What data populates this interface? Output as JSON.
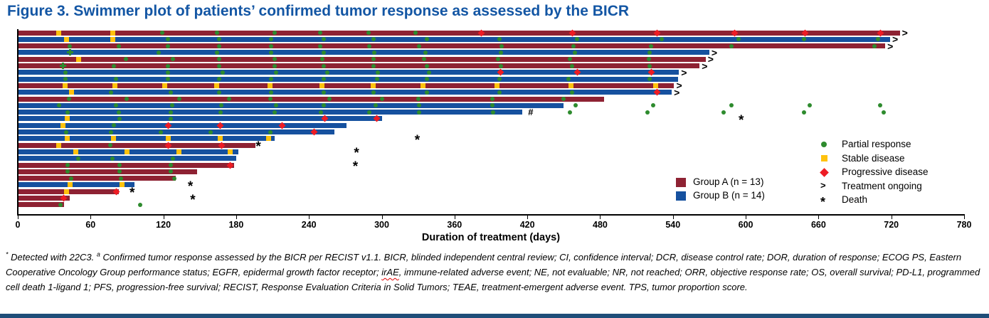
{
  "title": {
    "text": "Figure 3. Swimmer plot of patients’ confirmed tumor response as assessed by the BICR"
  },
  "chart_data": {
    "type": "swimmer",
    "title": "Swimmer plot of patients' confirmed tumor response as assessed by the BICR",
    "xlabel": "Duration of treatment (days)",
    "xlim": [
      0,
      780
    ],
    "x_ticks": [
      0,
      60,
      120,
      180,
      240,
      300,
      360,
      420,
      480,
      540,
      600,
      660,
      720,
      780
    ],
    "grid": false,
    "legend_position": "inside-right",
    "groups": [
      {
        "id": "A",
        "label": "Group A (n = 13)",
        "color": "#8E2233"
      },
      {
        "id": "B",
        "label": "Group B (n = 14)",
        "color": "#16519F"
      }
    ],
    "marker_legend": [
      {
        "type": "pr",
        "label": "Partial response",
        "color": "#2E8B2E"
      },
      {
        "type": "sd",
        "label": "Stable disease",
        "color": "#FFC20E"
      },
      {
        "type": "pd",
        "label": "Progressive disease",
        "color": "#ED1C24"
      },
      {
        "type": "ongoing",
        "label": "Treatment ongoing",
        "symbol": ">"
      },
      {
        "type": "death",
        "label": "Death",
        "symbol": "*"
      }
    ],
    "patients": [
      {
        "group": "A",
        "end": 727,
        "ongoing": true,
        "markers": [
          [
            "sd",
            34
          ],
          [
            "sd",
            78
          ],
          [
            "pr",
            119
          ],
          [
            "pr",
            164
          ],
          [
            "pr",
            212
          ],
          [
            "pr",
            249
          ],
          [
            "pr",
            289
          ],
          [
            "pr",
            328
          ],
          [
            "pd",
            382
          ],
          [
            "pd",
            457
          ],
          [
            "pd",
            527
          ],
          [
            "pd",
            591
          ],
          [
            "pd",
            649
          ],
          [
            "pd",
            711
          ]
        ]
      },
      {
        "group": "B",
        "end": 719,
        "ongoing": true,
        "markers": [
          [
            "sd",
            40
          ],
          [
            "sd",
            78
          ],
          [
            "pr",
            124
          ],
          [
            "pr",
            166
          ],
          [
            "pr",
            209
          ],
          [
            "pr",
            252
          ],
          [
            "pr",
            293
          ],
          [
            "pr",
            337
          ],
          [
            "pr",
            397
          ],
          [
            "pr",
            461
          ],
          [
            "pr",
            531
          ],
          [
            "pr",
            594
          ],
          [
            "pr",
            648
          ],
          [
            "pr",
            709
          ]
        ]
      },
      {
        "group": "A",
        "end": 715,
        "ongoing": true,
        "markers": [
          [
            "pr",
            43
          ],
          [
            "pr",
            83
          ],
          [
            "pr",
            124
          ],
          [
            "pr",
            166
          ],
          [
            "pr",
            209
          ],
          [
            "pr",
            249
          ],
          [
            "pr",
            290
          ],
          [
            "pr",
            331
          ],
          [
            "pr",
            399
          ],
          [
            "pr",
            458
          ],
          [
            "pr",
            522
          ],
          [
            "pr",
            588
          ],
          [
            "pr",
            706
          ]
        ]
      },
      {
        "group": "B",
        "end": 570,
        "ongoing": true,
        "markers": [
          [
            "plus",
            43
          ],
          [
            "pr",
            116
          ],
          [
            "pr",
            164
          ],
          [
            "pr",
            209
          ],
          [
            "pr",
            252
          ],
          [
            "pr",
            294
          ],
          [
            "pr",
            336
          ],
          [
            "pr",
            398
          ],
          [
            "pr",
            459
          ],
          [
            "pr",
            521
          ]
        ]
      },
      {
        "group": "A",
        "end": 567,
        "ongoing": true,
        "markers": [
          [
            "sd",
            50
          ],
          [
            "pr",
            89
          ],
          [
            "pr",
            128
          ],
          [
            "pr",
            166
          ],
          [
            "pr",
            212
          ],
          [
            "pr",
            251
          ],
          [
            "pr",
            293
          ],
          [
            "pr",
            335
          ],
          [
            "pr",
            396
          ],
          [
            "pr",
            455
          ],
          [
            "pr",
            520
          ]
        ]
      },
      {
        "group": "A",
        "end": 562,
        "ongoing": true,
        "markers": [
          [
            "plus",
            37
          ],
          [
            "pr",
            79
          ],
          [
            "pr",
            124
          ],
          [
            "pr",
            166
          ],
          [
            "pr",
            212
          ],
          [
            "pr",
            252
          ],
          [
            "pr",
            293
          ],
          [
            "pr",
            337
          ],
          [
            "pr",
            398
          ],
          [
            "pr",
            457
          ],
          [
            "pr",
            521
          ]
        ]
      },
      {
        "group": "B",
        "end": 545,
        "ongoing": true,
        "markers": [
          [
            "pr",
            39
          ],
          [
            "pr",
            124
          ],
          [
            "pr",
            169
          ],
          [
            "pr",
            213
          ],
          [
            "pr",
            255
          ],
          [
            "pr",
            297
          ],
          [
            "pr",
            339
          ],
          [
            "pd",
            398
          ],
          [
            "pd",
            461
          ],
          [
            "pd",
            522
          ]
        ]
      },
      {
        "group": "B",
        "end": 544,
        "ongoing": false,
        "markers": [
          [
            "pr",
            39
          ],
          [
            "pr",
            81
          ],
          [
            "pr",
            124
          ],
          [
            "pr",
            166
          ],
          [
            "pr",
            209
          ],
          [
            "pr",
            252
          ],
          [
            "pr",
            296
          ],
          [
            "pr",
            337
          ],
          [
            "pr",
            397
          ],
          [
            "pr",
            454
          ],
          [
            "pr",
            521
          ]
        ]
      },
      {
        "group": "A",
        "end": 541,
        "ongoing": true,
        "markers": [
          [
            "sd",
            39
          ],
          [
            "sd",
            80
          ],
          [
            "sd",
            121
          ],
          [
            "sd",
            164
          ],
          [
            "sd",
            208
          ],
          [
            "sd",
            251
          ],
          [
            "sd",
            293
          ],
          [
            "sd",
            334
          ],
          [
            "sd",
            395
          ],
          [
            "sd",
            456
          ],
          [
            "sd",
            526
          ]
        ]
      },
      {
        "group": "B",
        "end": 539,
        "ongoing": true,
        "markers": [
          [
            "sd",
            44
          ],
          [
            "pr",
            77
          ],
          [
            "pr",
            126
          ],
          [
            "pr",
            166
          ],
          [
            "pr",
            209
          ],
          [
            "pr",
            252
          ],
          [
            "pr",
            293
          ],
          [
            "pr",
            337
          ],
          [
            "pr",
            397
          ],
          [
            "pr",
            457
          ],
          [
            "pd",
            527
          ]
        ]
      },
      {
        "group": "A",
        "end": 483,
        "ongoing": false,
        "markers": [
          [
            "pr",
            42
          ],
          [
            "pr",
            90
          ],
          [
            "pr",
            133
          ],
          [
            "pr",
            174
          ],
          [
            "pr",
            208
          ],
          [
            "pr",
            257
          ],
          [
            "pr",
            300
          ],
          [
            "pr",
            330
          ],
          [
            "pr",
            391
          ],
          [
            "pr",
            450
          ]
        ]
      },
      {
        "group": "B",
        "end": 450,
        "ongoing": false,
        "markers": [
          [
            "pr",
            34
          ],
          [
            "pr",
            81
          ],
          [
            "pr",
            127
          ],
          [
            "pr",
            168
          ],
          [
            "pr",
            213
          ],
          [
            "pr",
            252
          ],
          [
            "pr",
            295
          ],
          [
            "pr",
            331
          ],
          [
            "pr",
            391
          ],
          [
            "pr",
            460
          ],
          [
            "pr",
            524
          ],
          [
            "pr",
            588
          ],
          [
            "pr",
            653
          ],
          [
            "pr",
            711
          ]
        ]
      },
      {
        "group": "B",
        "end": 416,
        "ongoing": false,
        "hash": 423,
        "markers": [
          [
            "pr",
            41
          ],
          [
            "pr",
            83
          ],
          [
            "pr",
            126
          ],
          [
            "pr",
            167
          ],
          [
            "pr",
            212
          ],
          [
            "pr",
            250
          ],
          [
            "pr",
            290
          ],
          [
            "pr",
            331
          ],
          [
            "pr",
            392
          ],
          [
            "pr",
            455
          ],
          [
            "pr",
            519
          ],
          [
            "pr",
            582
          ],
          [
            "pr",
            648
          ],
          [
            "pr",
            714
          ]
        ]
      },
      {
        "group": "B",
        "end": 300,
        "ongoing": false,
        "death": 597,
        "markers": [
          [
            "sd",
            41
          ],
          [
            "pr",
            84
          ],
          [
            "pr",
            126
          ],
          [
            "pd",
            253
          ],
          [
            "pd",
            296
          ]
        ]
      },
      {
        "group": "B",
        "end": 271,
        "ongoing": false,
        "markers": [
          [
            "sd",
            37
          ],
          [
            "pr",
            79
          ],
          [
            "pd",
            124
          ],
          [
            "pd",
            167
          ],
          [
            "pd",
            218
          ]
        ]
      },
      {
        "group": "B",
        "end": 261,
        "ongoing": false,
        "markers": [
          [
            "pr",
            40
          ],
          [
            "pr",
            77
          ],
          [
            "pr",
            118
          ],
          [
            "pr",
            159
          ],
          [
            "pr",
            208
          ],
          [
            "pd",
            244
          ]
        ]
      },
      {
        "group": "B",
        "end": 212,
        "ongoing": false,
        "death": 330,
        "markers": [
          [
            "sd",
            41
          ],
          [
            "sd",
            79
          ],
          [
            "sd",
            124
          ],
          [
            "sd",
            167
          ],
          [
            "sd",
            207
          ]
        ]
      },
      {
        "group": "A",
        "end": 196,
        "ongoing": false,
        "death": 199,
        "markers": [
          [
            "sd",
            34
          ],
          [
            "pr",
            76
          ],
          [
            "pd",
            124
          ],
          [
            "pd",
            168
          ]
        ]
      },
      {
        "group": "B",
        "end": 182,
        "ongoing": false,
        "death": 280,
        "markers": [
          [
            "sd",
            48
          ],
          [
            "sd",
            90
          ],
          [
            "sd",
            133
          ],
          [
            "sd",
            175
          ]
        ]
      },
      {
        "group": "B",
        "end": 180,
        "ongoing": false,
        "markers": [
          [
            "pr",
            50
          ],
          [
            "pr",
            78
          ],
          [
            "pr",
            128
          ]
        ]
      },
      {
        "group": "A",
        "end": 178,
        "ongoing": false,
        "death": 279,
        "markers": [
          [
            "pr",
            41
          ],
          [
            "pr",
            84
          ],
          [
            "pr",
            126
          ],
          [
            "pd",
            175
          ]
        ]
      },
      {
        "group": "A",
        "end": 148,
        "ongoing": false,
        "markers": [
          [
            "pr",
            41
          ],
          [
            "pr",
            84
          ],
          [
            "pr",
            126
          ]
        ]
      },
      {
        "group": "A",
        "end": 130,
        "ongoing": false,
        "markers": [
          [
            "pr",
            44
          ],
          [
            "pr",
            85
          ],
          [
            "pr",
            129
          ]
        ]
      },
      {
        "group": "B",
        "end": 96,
        "ongoing": false,
        "death": 143,
        "markers": [
          [
            "sd",
            43
          ],
          [
            "sd",
            86
          ]
        ]
      },
      {
        "group": "A",
        "end": 83,
        "ongoing": false,
        "death": 95,
        "markers": [
          [
            "sd",
            40
          ],
          [
            "pd",
            81
          ]
        ]
      },
      {
        "group": "A",
        "end": 43,
        "ongoing": false,
        "death": 145,
        "markers": [
          [
            "pd",
            38
          ]
        ]
      },
      {
        "group": "A",
        "end": 38,
        "ongoing": false,
        "markers": [
          [
            "pr",
            35
          ],
          [
            "pr",
            101
          ]
        ]
      }
    ]
  },
  "footnote": {
    "tokens": [
      {
        "style": "sup",
        "text": "*"
      },
      {
        "style": "plain",
        "text": " Detected with 22C3. "
      },
      {
        "style": "sup",
        "text": "a"
      },
      {
        "style": "plain",
        "text": " Confirmed tumor response assessed by the BICR per RECIST v1.1. BICR, blinded independent central review; CI, confidence interval; DCR, disease control rate; DOR, duration of response; ECOG PS, Eastern Cooperative Oncology Group performance status; EGFR, epidermal growth factor receptor; "
      },
      {
        "style": "squiggly",
        "text": "irAE"
      },
      {
        "style": "plain",
        "text": ", immune-related adverse event; NE, not evaluable; NR, not reached; ORR, objective response rate; OS, overall survival; PD-L1, programmed cell death 1-ligand 1; PFS, progression-free survival; RECIST, Response Evaluation Criteria in Solid Tumors; TEAE, treatment-emergent adverse event. TPS, tumor proportion score."
      }
    ]
  }
}
